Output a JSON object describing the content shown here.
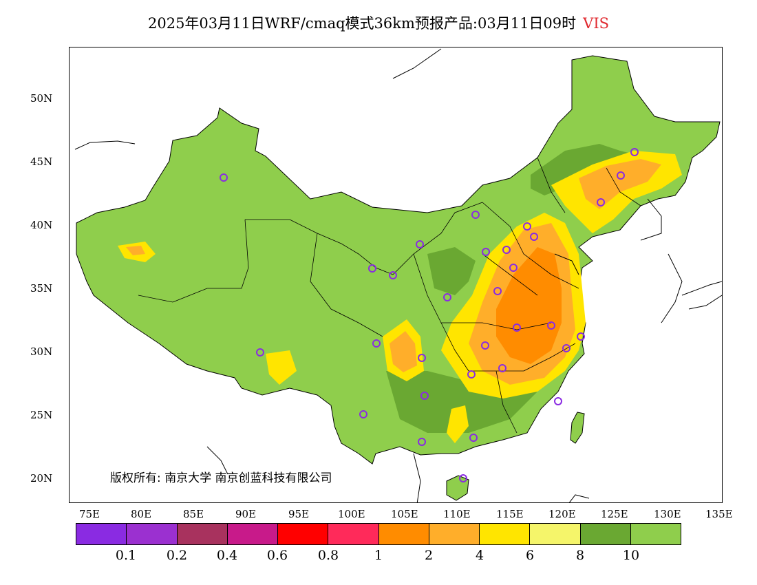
{
  "title": {
    "main": "2025年03月11日WRF/cmaq模式36km预报产品:03月11日09时",
    "variable": "VIS"
  },
  "copyright": "版权所有: 南京大学  南京创蓝科技有限公司",
  "lat_labels": [
    "50N",
    "45N",
    "40N",
    "35N",
    "30N",
    "25N",
    "20N"
  ],
  "lon_labels": [
    "75E",
    "80E",
    "85E",
    "90E",
    "95E",
    "100E",
    "105E",
    "110E",
    "115E",
    "120E",
    "125E",
    "130E",
    "135E"
  ],
  "legend": {
    "colors": [
      "#8a2be2",
      "#9b30d0",
      "#a8325e",
      "#c81a8a",
      "#ff0000",
      "#ff2a5a",
      "#ff8c00",
      "#ffae2a",
      "#ffe500",
      "#f5f56a",
      "#6aa832",
      "#8fce4c"
    ],
    "labels": [
      "0.1",
      "0.2",
      "0.4",
      "0.6",
      "0.8",
      "1",
      "2",
      "4",
      "6",
      "8",
      "10"
    ]
  },
  "map": {
    "land_color": "#8fce4c",
    "dark_green": "#6aa832",
    "station_color": "#8a2be2"
  }
}
